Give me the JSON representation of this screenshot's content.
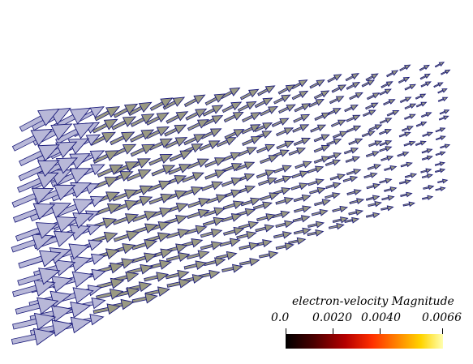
{
  "scene": {
    "arrow_fill": "#9a9a82",
    "arrow_edge": "#1a1a7a",
    "arrow_highlight": "#b8b8d8",
    "background": "#ffffff"
  },
  "colorbar": {
    "title": "electron-velocity Magnitude",
    "labels": [
      "0.0",
      "0.0020",
      "0.0040",
      "0.0066"
    ],
    "range": [
      0.0,
      0.0066
    ],
    "colormap": [
      "#000000",
      "#b50000",
      "#ff3000",
      "#ff8a00",
      "#ffd400",
      "#ffffb0"
    ]
  }
}
